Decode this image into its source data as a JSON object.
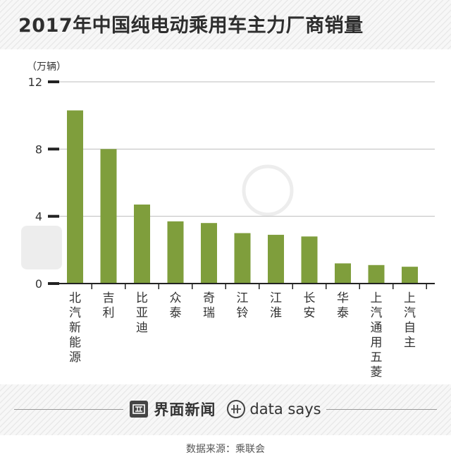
{
  "title": "2017年中国纯电动乘用车主力厂商销量",
  "source": "数据来源：乘联会",
  "brand": {
    "cn": "界面新闻",
    "en": "data says"
  },
  "colors": {
    "bar": "#7f9e3c",
    "axis": "#222222",
    "grid": "#bdbdbd",
    "text": "#333333"
  },
  "chart_data": {
    "type": "bar",
    "unit_label": "（万辆）",
    "categories": [
      "北汽新能源",
      "吉利",
      "比亚迪",
      "众泰",
      "奇瑞",
      "江铃",
      "江淮",
      "长安",
      "华泰",
      "上汽通用五菱",
      "上汽自主"
    ],
    "values": [
      10.3,
      8.0,
      4.7,
      3.7,
      3.6,
      3.0,
      2.9,
      2.8,
      1.2,
      1.1,
      1.0
    ],
    "yticks": [
      0,
      4,
      8,
      12
    ],
    "ylim": [
      0,
      12
    ],
    "grid": true
  }
}
